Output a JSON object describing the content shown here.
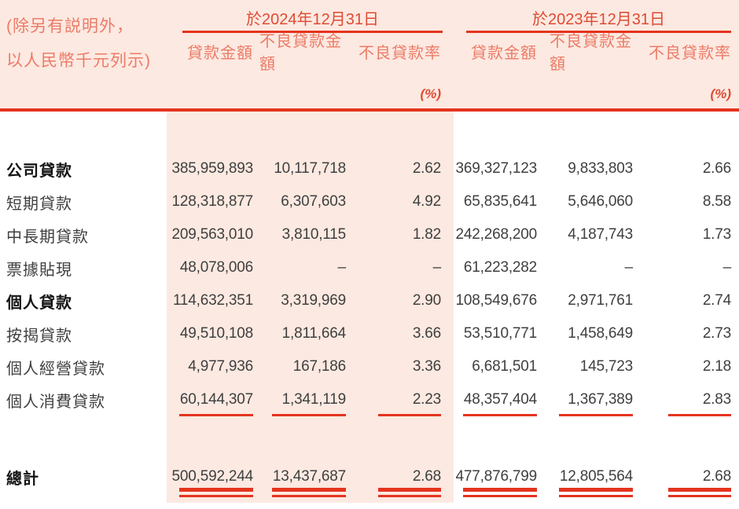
{
  "header": {
    "note_line1": "(除另有説明外，",
    "note_line2": "以人民幣千元列示)",
    "periods": [
      "於2024年12月31日",
      "於2023年12月31日"
    ],
    "columns": [
      "貸款金額",
      "不良貸款金額",
      "不良貸款率",
      "貸款金額",
      "不良貸款金額",
      "不良貸款率"
    ],
    "ratio_unit": "(%)"
  },
  "table": {
    "rows": [
      {
        "label": "公司貸款",
        "bold": true,
        "underline": false,
        "values": [
          "385,959,893",
          "10,117,718",
          "2.62",
          "369,327,123",
          "9,833,803",
          "2.66"
        ]
      },
      {
        "label": "短期貸款",
        "bold": false,
        "underline": false,
        "values": [
          "128,318,877",
          "6,307,603",
          "4.92",
          "65,835,641",
          "5,646,060",
          "8.58"
        ]
      },
      {
        "label": "中長期貸款",
        "bold": false,
        "underline": false,
        "values": [
          "209,563,010",
          "3,810,115",
          "1.82",
          "242,268,200",
          "4,187,743",
          "1.73"
        ]
      },
      {
        "label": "票據貼現",
        "bold": false,
        "underline": false,
        "values": [
          "48,078,006",
          "–",
          "–",
          "61,223,282",
          "–",
          "–"
        ]
      },
      {
        "label": "個人貸款",
        "bold": true,
        "underline": false,
        "values": [
          "114,632,351",
          "3,319,969",
          "2.90",
          "108,549,676",
          "2,971,761",
          "2.74"
        ]
      },
      {
        "label": "按揭貸款",
        "bold": false,
        "underline": false,
        "values": [
          "49,510,108",
          "1,811,664",
          "3.66",
          "53,510,771",
          "1,458,649",
          "2.73"
        ]
      },
      {
        "label": "個人經營貸款",
        "bold": false,
        "underline": false,
        "values": [
          "4,977,936",
          "167,186",
          "3.36",
          "6,681,501",
          "145,723",
          "2.18"
        ]
      },
      {
        "label": "個人消費貸款",
        "bold": false,
        "underline": true,
        "values": [
          "60,144,307",
          "1,341,119",
          "2.23",
          "48,357,404",
          "1,367,389",
          "2.83"
        ]
      }
    ],
    "total": {
      "label": "總計",
      "values": [
        "500,592,244",
        "13,437,687",
        "2.68",
        "477,876,799",
        "12,805,564",
        "2.68"
      ]
    }
  },
  "colors": {
    "band_pink": "#fce9e1",
    "rule_red": "#e5341f",
    "period_text_red": "#df4a33",
    "column_text_salmon": "#ec7b67",
    "body_text": "#3f3f3f",
    "bold_text": "#141414"
  }
}
